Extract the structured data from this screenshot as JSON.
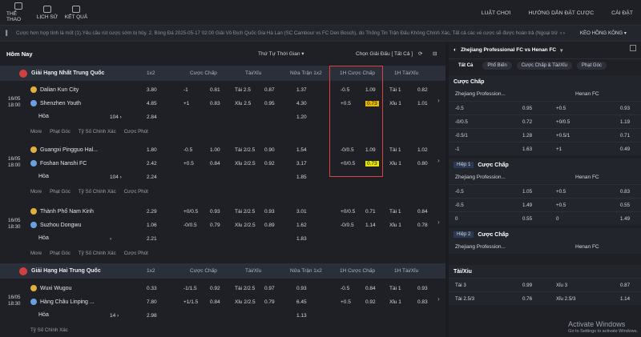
{
  "nav": {
    "items": [
      {
        "label": "THỂ THAO"
      },
      {
        "label": "LỊCH SỬ"
      },
      {
        "label": "KẾT QUẢ"
      }
    ],
    "right": [
      "LUẬT CHƠI",
      "HƯỚNG DẪN ĐẶT CƯỢC",
      "CÀI ĐẶT"
    ]
  },
  "ticker": {
    "text": "Cược hơn hợp tính là mốt (1).Yêu cầu rút cược sớm bị hủy.  2. Bóng Đá 2025-05-17 02:00 Giải Vô Địch Quốc Gia Hà Lan (SC Cambour vs FC Den Bosch), do Thống Tin Trận Đấu Không Chính Xác, Tất cả các vé cược sẽ được hoàn trả (Ngoại trừ",
    "keo": "KÈO HỒNG KÔNG"
  },
  "left": {
    "title": "Hôm Nay",
    "sort": "Thứ Tự Thời Gian",
    "choose": "Chọn Giải Đấu",
    "all": "[ Tất Cả ]"
  },
  "league1": {
    "name": "Giải Hạng Nhất Trung Quốc",
    "cols": [
      "1x2",
      "Cược Chấp",
      "Tài/Xỉu",
      "Nửa Trận 1x2",
      "1H Cược Chấp",
      "1H Tài/Xỉu"
    ]
  },
  "league2": {
    "name": "Giải Hạng Hai Trung Quốc",
    "cols": [
      "1x2",
      "Cược Chấp",
      "Tài/Xỉu",
      "Nửa Trận 1x2",
      "1H Cược Chấp",
      "1H Tài/Xỉu"
    ]
  },
  "matches": [
    {
      "date": "16/05",
      "time": "18:00",
      "home": "Dalian Kun City",
      "away": "Shenzhen Youth",
      "draw": "Hòa",
      "count": "104",
      "r1": [
        "3.80",
        "-1",
        "0.81",
        "Tài 2.5",
        "0.87",
        "1.37",
        "-0.5",
        "1.09",
        "Tài 1",
        "0.82"
      ],
      "r2": [
        "4.85",
        "+1",
        "0.83",
        "Xỉu 2.5",
        "0.95",
        "4.30",
        "+0.5",
        "0.73",
        "Xỉu 1",
        "1.01"
      ],
      "r3": [
        "2.84",
        "1.20"
      ],
      "links": [
        "More",
        "Phạt Góc",
        "Tỷ Số Chính Xác",
        "Cược Phút"
      ]
    },
    {
      "date": "16/05",
      "time": "18:00",
      "home": "Guangxi Pingguo Hal...",
      "away": "Foshan Nanshi FC",
      "draw": "Hòa",
      "count": "104",
      "r1": [
        "1.80",
        "-0.5",
        "1.00",
        "Tài 2/2.5",
        "0.90",
        "1.54",
        "-0/0.5",
        "1.09",
        "Tài 1",
        "1.02"
      ],
      "r2": [
        "2.42",
        "+0.5",
        "0.84",
        "Xỉu 2/2.5",
        "0.92",
        "3.17",
        "+0/0.5",
        "0.73",
        "Xỉu 1",
        "0.80"
      ],
      "r3": [
        "2.24",
        "1.85"
      ],
      "links": [
        "More",
        "Phạt Góc",
        "Tỷ Số Chính Xác",
        "Cược Phút"
      ]
    },
    {
      "date": "16/05",
      "time": "18:30",
      "home": "Thành Phố Nam Kinh",
      "away": "Suzhou Dongwu",
      "draw": "Hòa",
      "count": "",
      "r1": [
        "2.29",
        "+0/0.5",
        "0.93",
        "Tài 2/2.5",
        "0.93",
        "3.01",
        "+0/0.5",
        "0.71",
        "Tài 1",
        "0.84"
      ],
      "r2": [
        "1.06",
        "-0/0.5",
        "0.79",
        "Xỉu 2/2.5",
        "0.89",
        "1.62",
        "-0/0.5",
        "1.14",
        "Xỉu 1",
        "0.78"
      ],
      "r3": [
        "2.21",
        "1.83"
      ],
      "links": [
        "More",
        "Phạt Góc",
        "Tỷ Số Chính Xác",
        "Cược Phút"
      ]
    },
    {
      "date": "16/05",
      "time": "18:30",
      "home": "Wuxi Wugou",
      "away": "Hàng Châu Linping ...",
      "draw": "Hòa",
      "count": "14",
      "r1": [
        "0.33",
        "-1/1.5",
        "0.92",
        "Tài 2/2.5",
        "0.97",
        "0.93",
        "-0.5",
        "0.84",
        "Tài 1",
        "0.93"
      ],
      "r2": [
        "7.80",
        "+1/1.5",
        "0.84",
        "Xỉu 2/2.5",
        "0.79",
        "6.45",
        "+0.5",
        "0.92",
        "Xỉu 1",
        "0.83"
      ],
      "r3": [
        "2.98",
        "1.13"
      ],
      "links": [
        "Tỷ Số Chính Xác"
      ]
    }
  ],
  "right": {
    "match": "Zhejiang Professional FC vs Henan FC",
    "tabs": [
      "Tất Cả",
      "Phổ Biến",
      "Cược Chấp & Tài/Xỉu",
      "Phạt Góc"
    ],
    "s1": {
      "title": "Cược Chấp",
      "home": "Zhejiang Profession...",
      "away": "Henan FC",
      "rows": [
        [
          "-0.5",
          "0.95",
          "+0.5",
          "0.93"
        ],
        [
          "-0/0.5",
          "0.72",
          "+0/0.5",
          "1.19"
        ],
        [
          "-0.5/1",
          "1.28",
          "+0.5/1",
          "0.71"
        ],
        [
          "-1",
          "1.63",
          "+1",
          "0.49"
        ]
      ]
    },
    "s2": {
      "hiep": "Hiệp 1",
      "title": "Cược Chấp",
      "home": "Zhejiang Profession...",
      "away": "Henan FC",
      "rows": [
        [
          "-0.5",
          "1.05",
          "+0.5",
          "0.83"
        ],
        [
          "-0.5",
          "1.49",
          "+0.5",
          "0.55"
        ],
        [
          "0",
          "0.55",
          "0",
          "1.49"
        ]
      ]
    },
    "s3": {
      "hiep": "Hiệp 2",
      "title": "Cược Chấp",
      "home": "Zhejiang Profession...",
      "away": "Henan FC"
    },
    "s4": {
      "title": "Tài/Xỉu",
      "rows": [
        [
          "Tài 3",
          "0.99",
          "Xỉu 3",
          "0.87"
        ],
        [
          "Tài 2.5/3",
          "0.76",
          "Xỉu 2.5/3",
          "1.14"
        ]
      ]
    },
    "watermark": {
      "line1": "Activate Windows",
      "line2": "Go to Settings to activate Windows."
    }
  }
}
